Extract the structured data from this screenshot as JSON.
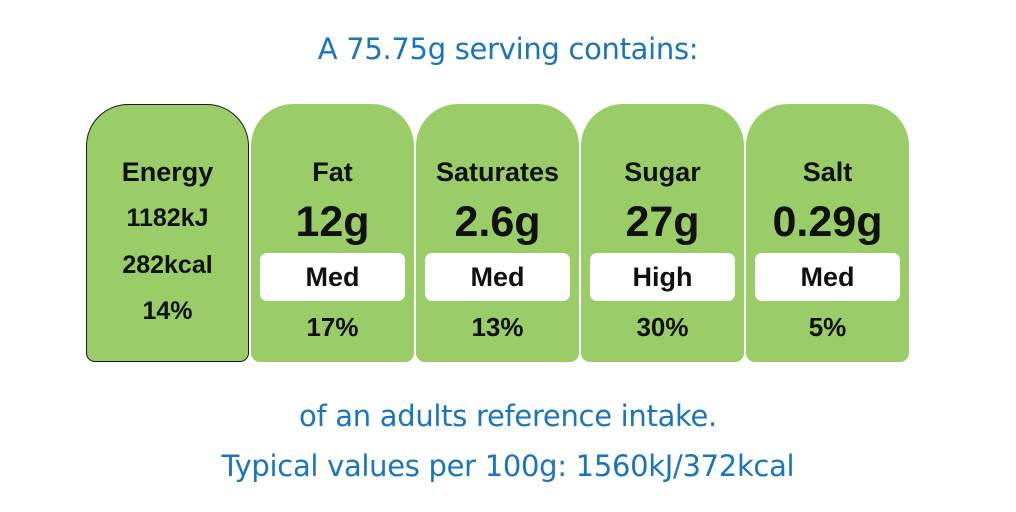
{
  "header": {
    "serving_text": "A 75.75g serving contains:"
  },
  "energy": {
    "label": "Energy",
    "kj": "1182kJ",
    "kcal": "282kcal",
    "percent": "14%",
    "color": "#9acd68"
  },
  "nutrients": [
    {
      "label": "Fat",
      "amount": "12g",
      "level": "Med",
      "percent": "17%"
    },
    {
      "label": "Saturates",
      "amount": "2.6g",
      "level": "Med",
      "percent": "13%"
    },
    {
      "label": "Sugar",
      "amount": "27g",
      "level": "High",
      "percent": "30%"
    },
    {
      "label": "Salt",
      "amount": "0.29g",
      "level": "Med",
      "percent": "5%"
    }
  ],
  "footer": {
    "reference_text": "of an adults reference intake.",
    "typical_values_text": "Typical values per 100g: 1560kJ/372kcal"
  },
  "colors": {
    "text_blue": "#1a75bc",
    "panel_green": "#9acd68"
  }
}
